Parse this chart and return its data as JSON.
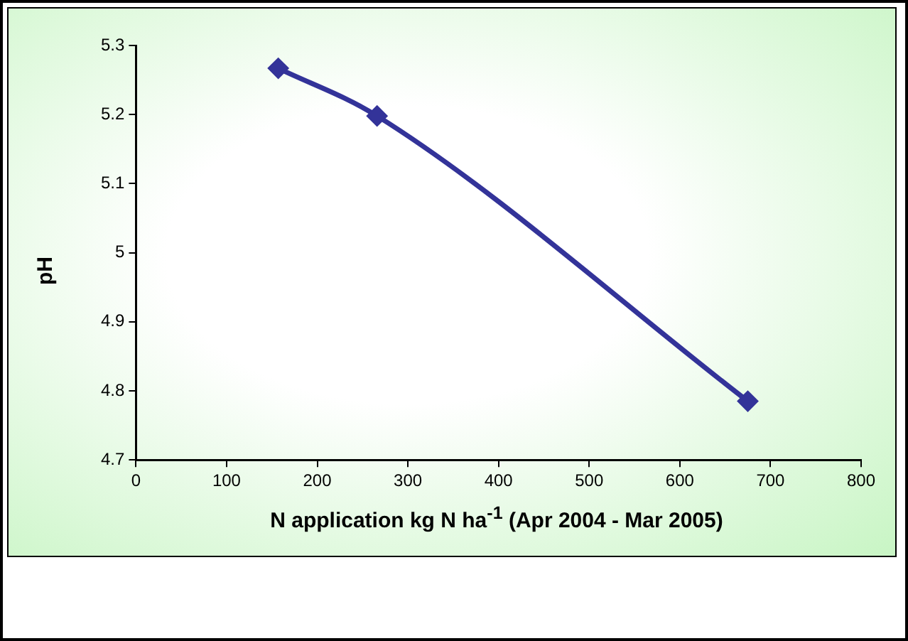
{
  "chart_data": {
    "type": "line",
    "xlabel": "N application kg N ha$^{-1}$ (Apr 2004 - Mar 2005)",
    "ylabel": "pH",
    "x": [
      157,
      266,
      675
    ],
    "series": [
      {
        "color": "#333399",
        "values": [
          5.267,
          5.198,
          4.785
        ]
      }
    ],
    "xlim": [
      0,
      800
    ],
    "xticks": [
      0,
      100,
      200,
      300,
      400,
      500,
      600,
      700,
      800
    ],
    "ylim": [
      4.7,
      5.3
    ],
    "yticks": [
      4.7,
      4.8,
      4.9,
      5,
      5.1,
      5.2,
      5.3
    ],
    "grid": false,
    "legend": false,
    "marker": "diamond",
    "line_style": "solid"
  }
}
